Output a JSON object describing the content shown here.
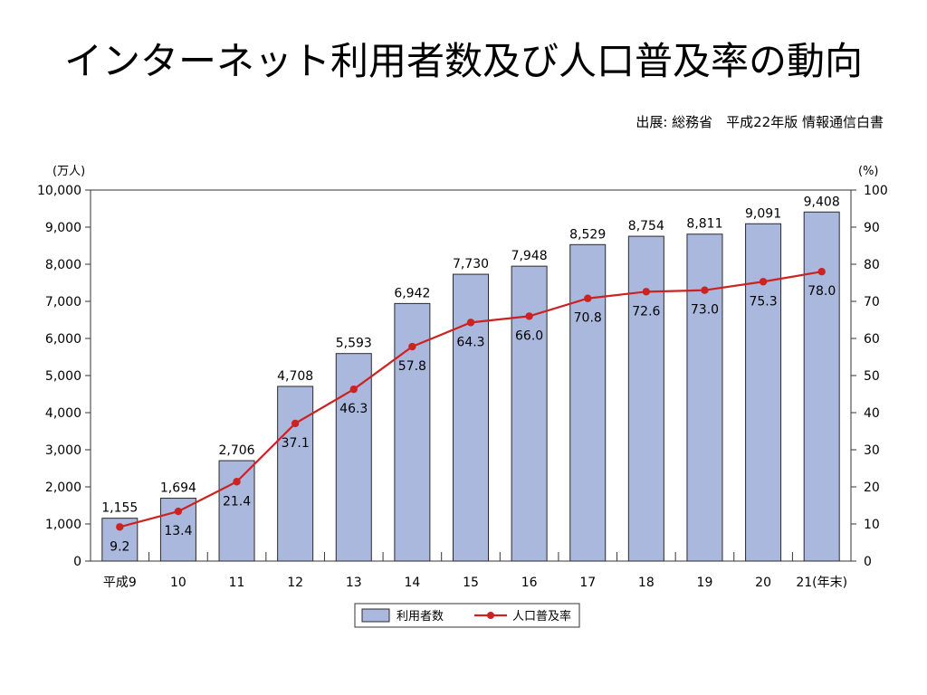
{
  "header": {
    "title": "インターネット利用者数及び人口普及率の動向",
    "source": "出展: 総務省　平成22年版 情報通信白書"
  },
  "chart_data": {
    "type": "bar",
    "categories": [
      "平成9",
      "10",
      "11",
      "12",
      "13",
      "14",
      "15",
      "16",
      "17",
      "18",
      "19",
      "20",
      "21(年末)"
    ],
    "series": [
      {
        "name": "利用者数",
        "type": "bar",
        "axis": "left",
        "values": [
          1155,
          1694,
          2706,
          4708,
          5593,
          6942,
          7730,
          7948,
          8529,
          8754,
          8811,
          9091,
          9408
        ],
        "labels": [
          "1,155",
          "1,694",
          "2,706",
          "4,708",
          "5,593",
          "6,942",
          "7,730",
          "7,948",
          "8,529",
          "8,754",
          "8,811",
          "9,091",
          "9,408"
        ]
      },
      {
        "name": "人口普及率",
        "type": "line",
        "axis": "right",
        "values": [
          9.2,
          13.4,
          21.4,
          37.1,
          46.3,
          57.8,
          64.3,
          66.0,
          70.8,
          72.6,
          73.0,
          75.3,
          78.0
        ],
        "labels": [
          "9.2",
          "13.4",
          "21.4",
          "37.1",
          "46.3",
          "57.8",
          "64.3",
          "66.0",
          "70.8",
          "72.6",
          "73.0",
          "75.3",
          "78.0"
        ]
      }
    ],
    "y_left": {
      "unit": "(万人)",
      "range": [
        0,
        10000
      ],
      "ticks": [
        "0",
        "1,000",
        "2,000",
        "3,000",
        "4,000",
        "5,000",
        "6,000",
        "7,000",
        "8,000",
        "9,000",
        "10,000"
      ]
    },
    "y_right": {
      "unit": "(%)",
      "range": [
        0,
        100
      ],
      "ticks": [
        "0",
        "10",
        "20",
        "30",
        "40",
        "50",
        "60",
        "70",
        "80",
        "90",
        "100"
      ]
    },
    "legend_placement": "bottom-center",
    "grid": false,
    "colors": {
      "bar_fill": "#aab8dd",
      "bar_stroke": "#2a2a2a",
      "line": "#cc2222",
      "marker": "#cc2222"
    }
  }
}
